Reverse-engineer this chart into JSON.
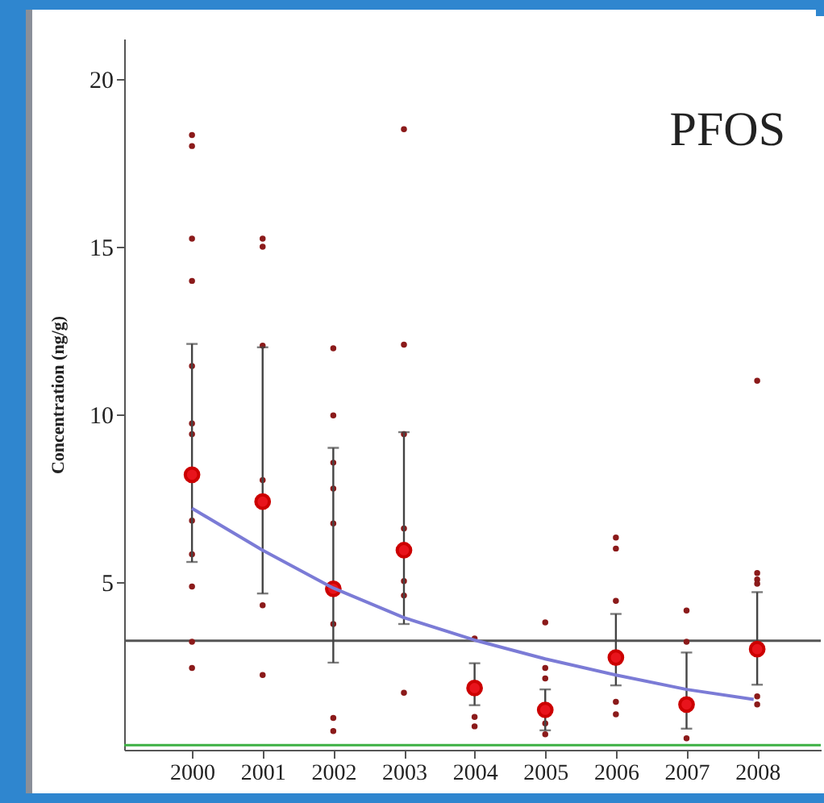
{
  "chart_data": {
    "type": "scatter",
    "ylabel": "Concentration (ng/g)",
    "annotations": [
      "PFOS"
    ],
    "xlim": [
      1999.04,
      2008.9
    ],
    "xticks": [
      2000,
      2001,
      2002,
      2003,
      2004,
      2005,
      2006,
      2007,
      2008
    ],
    "ylim": [
      0,
      21.2
    ],
    "yticks": [
      5,
      10,
      15,
      20
    ],
    "ref_lines": [
      {
        "axis": "y",
        "value": 3.25,
        "color": "#555555"
      },
      {
        "axis": "y",
        "value": 0.14,
        "color": "#3cb043"
      }
    ],
    "series": [
      {
        "color": "#8b1a1a",
        "x": [
          2000,
          2000,
          2000,
          2000,
          2000,
          2000,
          2000,
          2000,
          2000,
          2000,
          2000,
          2000,
          2001,
          2001,
          2001,
          2001,
          2001,
          2001,
          2002,
          2002,
          2002,
          2002,
          2002,
          2002,
          2002,
          2002,
          2003,
          2003,
          2003,
          2003,
          2003,
          2003,
          2003,
          2004,
          2004,
          2004,
          2005,
          2005,
          2005,
          2005,
          2005,
          2006,
          2006,
          2006,
          2006,
          2006,
          2007,
          2007,
          2007,
          2008,
          2008,
          2008,
          2008,
          2008,
          2008
        ],
        "values": [
          18.33,
          18.0,
          15.24,
          13.98,
          11.44,
          9.73,
          9.41,
          6.83,
          5.83,
          4.87,
          3.22,
          2.44,
          15.24,
          15.0,
          12.05,
          8.04,
          4.31,
          2.23,
          11.97,
          9.97,
          8.56,
          7.79,
          6.75,
          3.75,
          0.95,
          0.56,
          18.5,
          12.08,
          9.41,
          6.6,
          5.03,
          4.6,
          1.7,
          3.32,
          0.98,
          0.7,
          3.8,
          2.44,
          2.13,
          0.79,
          0.46,
          6.33,
          6.0,
          4.44,
          1.43,
          1.06,
          4.15,
          3.22,
          0.34,
          11.0,
          5.27,
          5.08,
          4.95,
          1.59,
          1.35
        ]
      },
      {
        "color": "#e8141c",
        "x": [
          2000,
          2001,
          2002,
          2003,
          2004,
          2005,
          2006,
          2007,
          2008
        ],
        "values": [
          8.2,
          7.4,
          4.8,
          5.95,
          1.84,
          1.19,
          2.75,
          1.35,
          3.0
        ],
        "errors": [
          [
            5.6,
            12.1
          ],
          [
            4.66,
            12.0
          ],
          [
            2.6,
            9.0
          ],
          [
            3.75,
            9.47
          ],
          [
            1.33,
            2.58
          ],
          [
            0.58,
            1.8
          ],
          [
            1.92,
            4.05
          ],
          [
            0.63,
            2.9
          ],
          [
            1.94,
            4.7
          ]
        ]
      },
      {
        "type": "line",
        "color": "#7b7bd6",
        "x": [
          2000,
          2001,
          2002,
          2003,
          2004,
          2005,
          2006,
          2007,
          2007.95
        ],
        "values": [
          7.2,
          5.95,
          4.82,
          3.94,
          3.27,
          2.71,
          2.23,
          1.8,
          1.5
        ]
      }
    ]
  }
}
